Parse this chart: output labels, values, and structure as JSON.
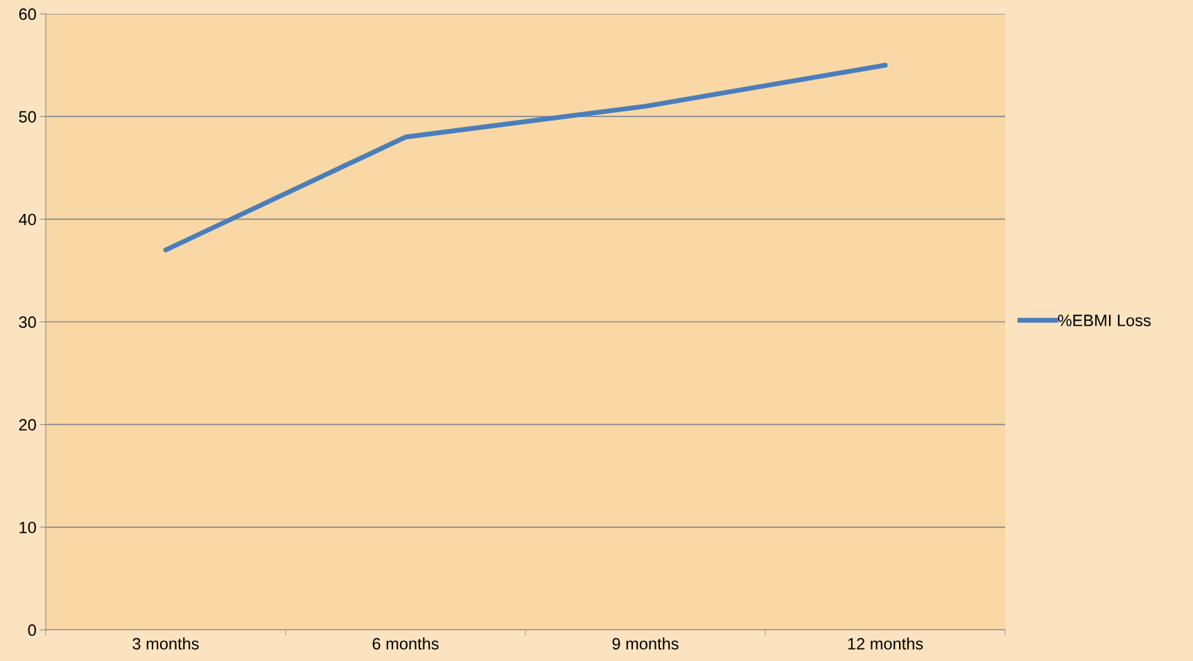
{
  "chart_data": {
    "type": "line",
    "categories": [
      "3 months",
      "6 months",
      "9 months",
      "12 months"
    ],
    "series": [
      {
        "name": "%EBMI Loss",
        "color": "#4a7ebb",
        "values": [
          37,
          48,
          51,
          55
        ]
      }
    ],
    "ylim": [
      0,
      60
    ],
    "yticks": [
      0,
      10,
      20,
      30,
      40,
      50,
      60
    ],
    "grid": "y",
    "legend": "right",
    "marker": "none"
  }
}
